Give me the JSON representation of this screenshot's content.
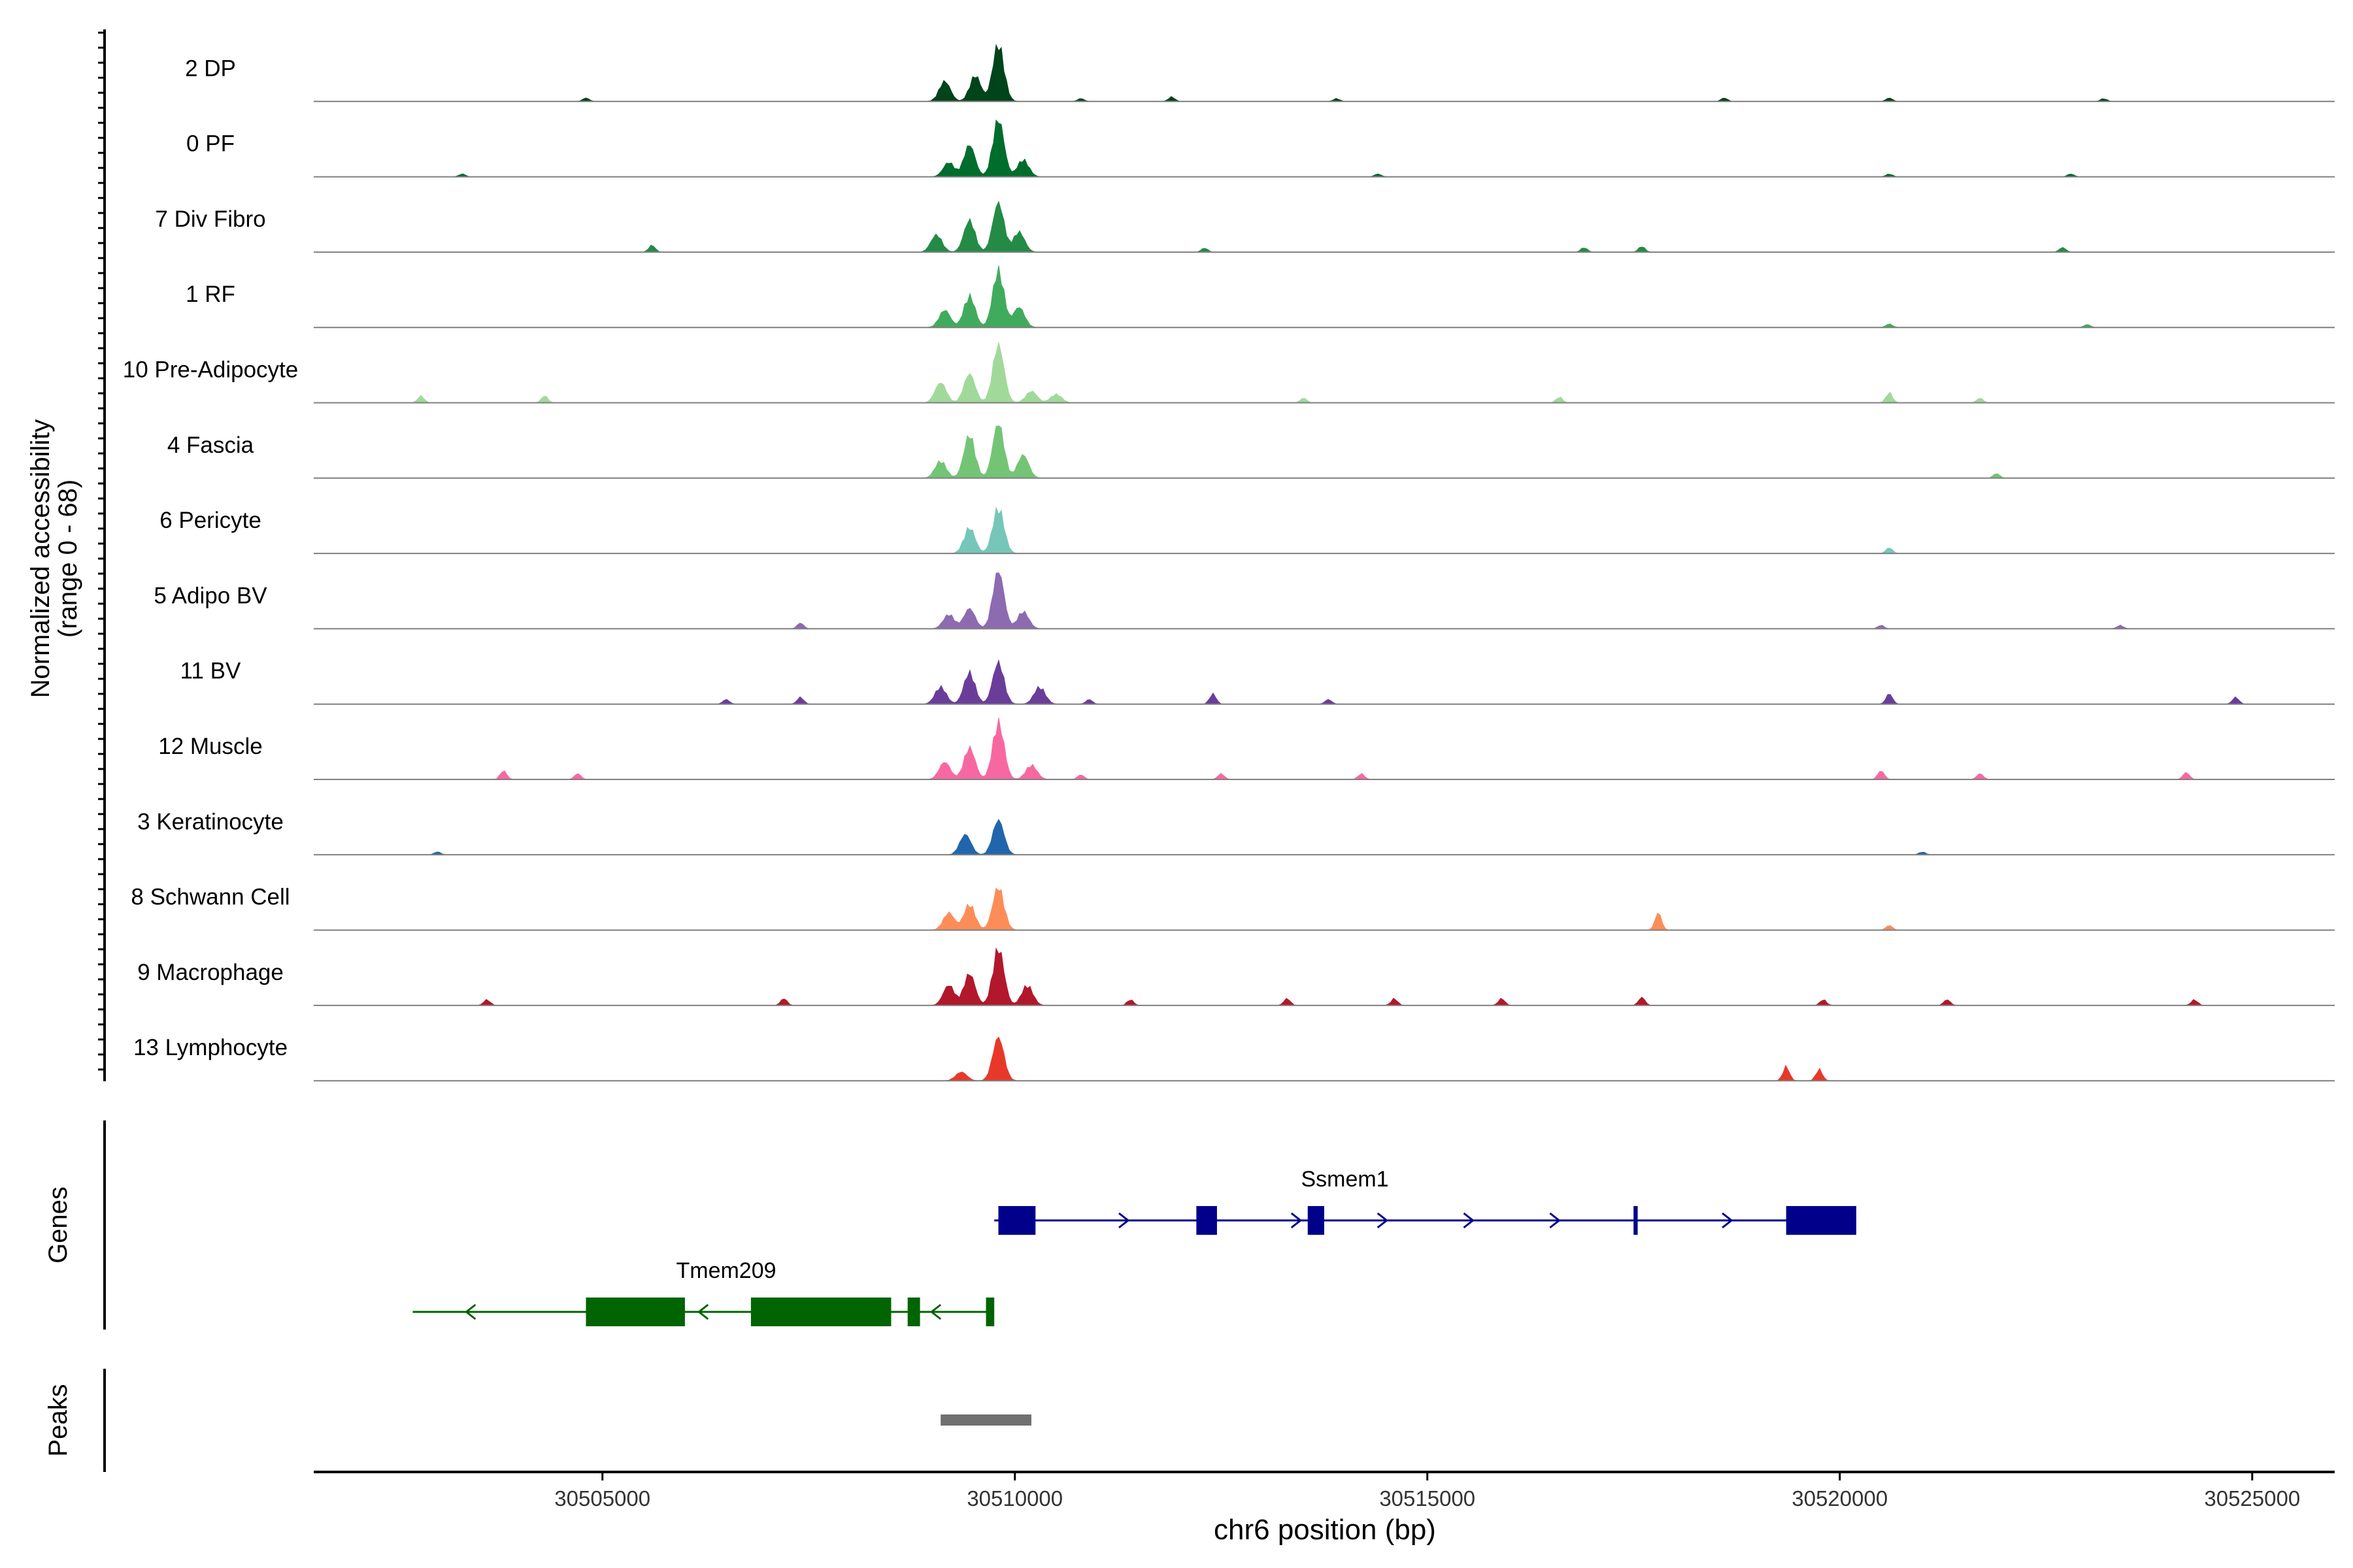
{
  "chart_data": {
    "type": "area",
    "title": "",
    "chromosome": "chr6",
    "xlabel": "chr6 position (bp)",
    "ylabel_line1": "Normalized accessibility",
    "ylabel_line2": "(range 0 - 68)",
    "y_range": [
      0,
      68
    ],
    "xlim": [
      30501500,
      30526000
    ],
    "x_ticks": [
      30505000,
      30510000,
      30515000,
      30520000,
      30525000
    ],
    "x_tick_labels": [
      "30505000",
      "30510000",
      "30515000",
      "30520000",
      "30525000"
    ],
    "tracks": [
      {
        "name": "2 DP",
        "color": "#00441b",
        "peaks": [
          [
            30509150,
            0.35
          ],
          [
            30509520,
            0.45
          ],
          [
            30509800,
            1.0
          ]
        ],
        "minor": [
          [
            30504800,
            0.06
          ],
          [
            30510800,
            0.05
          ],
          [
            30511900,
            0.08
          ],
          [
            30513900,
            0.05
          ],
          [
            30518600,
            0.06
          ],
          [
            30520600,
            0.06
          ],
          [
            30523200,
            0.05
          ]
        ]
      },
      {
        "name": "0 PF",
        "color": "#006d2c",
        "peaks": [
          [
            30509200,
            0.25
          ],
          [
            30509450,
            0.55
          ],
          [
            30509800,
            1.0
          ],
          [
            30510100,
            0.3
          ]
        ],
        "minor": [
          [
            30503300,
            0.05
          ],
          [
            30514400,
            0.05
          ],
          [
            30520600,
            0.05
          ],
          [
            30522800,
            0.05
          ]
        ]
      },
      {
        "name": "7 Div Fibro",
        "color": "#238b45",
        "peaks": [
          [
            30509050,
            0.3
          ],
          [
            30509450,
            0.55
          ],
          [
            30509800,
            0.85
          ],
          [
            30510050,
            0.35
          ]
        ],
        "minor": [
          [
            30505600,
            0.12
          ],
          [
            30512300,
            0.07
          ],
          [
            30516900,
            0.08
          ],
          [
            30517600,
            0.1
          ],
          [
            30522700,
            0.08
          ]
        ]
      },
      {
        "name": "1 RF",
        "color": "#41ab5d",
        "peaks": [
          [
            30509150,
            0.3
          ],
          [
            30509450,
            0.55
          ],
          [
            30509800,
            1.0
          ],
          [
            30510050,
            0.35
          ]
        ],
        "minor": [
          [
            30520600,
            0.06
          ],
          [
            30523000,
            0.05
          ]
        ]
      },
      {
        "name": "10 Pre-Adipocyte",
        "color": "#a1d99b",
        "peaks": [
          [
            30509100,
            0.35
          ],
          [
            30509450,
            0.5
          ],
          [
            30509800,
            1.0
          ],
          [
            30510200,
            0.2
          ],
          [
            30510500,
            0.15
          ]
        ],
        "minor": [
          [
            30502800,
            0.12
          ],
          [
            30504300,
            0.12
          ],
          [
            30513500,
            0.08
          ],
          [
            30516600,
            0.1
          ],
          [
            30520600,
            0.18
          ],
          [
            30521700,
            0.08
          ]
        ]
      },
      {
        "name": "4 Fascia",
        "color": "#74c476",
        "peaks": [
          [
            30509100,
            0.3
          ],
          [
            30509450,
            0.75
          ],
          [
            30509800,
            0.95
          ],
          [
            30510100,
            0.4
          ]
        ],
        "minor": [
          [
            30521900,
            0.08
          ]
        ]
      },
      {
        "name": "6 Pericyte",
        "color": "#76c7b9",
        "peaks": [
          [
            30509450,
            0.45
          ],
          [
            30509800,
            0.8
          ]
        ],
        "minor": [
          [
            30520600,
            0.1
          ]
        ]
      },
      {
        "name": "5 Adipo BV",
        "color": "#8c6bb1",
        "peaks": [
          [
            30509200,
            0.25
          ],
          [
            30509450,
            0.35
          ],
          [
            30509800,
            1.0
          ],
          [
            30510100,
            0.3
          ]
        ],
        "minor": [
          [
            30507400,
            0.1
          ],
          [
            30520500,
            0.06
          ],
          [
            30523400,
            0.06
          ]
        ]
      },
      {
        "name": "11 BV",
        "color": "#6a3d9a",
        "peaks": [
          [
            30509100,
            0.3
          ],
          [
            30509450,
            0.55
          ],
          [
            30509800,
            0.72
          ],
          [
            30510300,
            0.3
          ]
        ],
        "minor": [
          [
            30506500,
            0.08
          ],
          [
            30507400,
            0.12
          ],
          [
            30510900,
            0.08
          ],
          [
            30512400,
            0.18
          ],
          [
            30513800,
            0.08
          ],
          [
            30520600,
            0.18
          ],
          [
            30524800,
            0.12
          ]
        ]
      },
      {
        "name": "12 Muscle",
        "color": "#f768a1",
        "peaks": [
          [
            30509150,
            0.3
          ],
          [
            30509450,
            0.55
          ],
          [
            30509800,
            1.0
          ],
          [
            30510200,
            0.25
          ]
        ],
        "minor": [
          [
            30503800,
            0.15
          ],
          [
            30504700,
            0.1
          ],
          [
            30510800,
            0.08
          ],
          [
            30512500,
            0.1
          ],
          [
            30514200,
            0.1
          ],
          [
            30520500,
            0.15
          ],
          [
            30521700,
            0.1
          ],
          [
            30524200,
            0.12
          ]
        ]
      },
      {
        "name": "3 Keratinocyte",
        "color": "#2166ac",
        "peaks": [
          [
            30509400,
            0.35
          ],
          [
            30509800,
            0.6
          ]
        ],
        "minor": [
          [
            30503000,
            0.05
          ],
          [
            30521000,
            0.05
          ]
        ]
      },
      {
        "name": "8 Schwann Cell",
        "color": "#fc8d59",
        "peaks": [
          [
            30509200,
            0.3
          ],
          [
            30509450,
            0.45
          ],
          [
            30509800,
            0.75
          ]
        ],
        "minor": [
          [
            30517800,
            0.3
          ],
          [
            30520600,
            0.08
          ]
        ]
      },
      {
        "name": "9 Macrophage",
        "color": "#b2182b",
        "peaks": [
          [
            30509200,
            0.35
          ],
          [
            30509450,
            0.55
          ],
          [
            30509800,
            1.0
          ],
          [
            30510150,
            0.35
          ]
        ],
        "minor": [
          [
            30503600,
            0.1
          ],
          [
            30507200,
            0.12
          ],
          [
            30511400,
            0.1
          ],
          [
            30513300,
            0.12
          ],
          [
            30514600,
            0.12
          ],
          [
            30515900,
            0.12
          ],
          [
            30517600,
            0.14
          ],
          [
            30519800,
            0.1
          ],
          [
            30521300,
            0.1
          ],
          [
            30524300,
            0.1
          ]
        ]
      },
      {
        "name": "13 Lymphocyte",
        "color": "#e8382a",
        "peaks": [
          [
            30509350,
            0.15
          ],
          [
            30509800,
            0.75
          ]
        ],
        "minor": [
          [
            30519350,
            0.25
          ],
          [
            30519750,
            0.2
          ]
        ]
      }
    ],
    "genes_label": "Genes",
    "peaks_label": "Peaks",
    "genes": [
      {
        "name": "Ssmem1",
        "strand": "+",
        "color": "#00008b",
        "start": 30509750,
        "end": 30520200,
        "exons": [
          [
            30509800,
            30510250
          ],
          [
            30512200,
            30512450
          ],
          [
            30513550,
            30513750
          ],
          [
            30517500,
            30517550
          ],
          [
            30519350,
            30520200
          ]
        ]
      },
      {
        "name": "Tmem209",
        "strand": "-",
        "color": "#006400",
        "start": 30502700,
        "end": 30509750,
        "exons": [
          [
            30504800,
            30506000
          ],
          [
            30506800,
            30508500
          ],
          [
            30508700,
            30508850
          ],
          [
            30509650,
            30509750
          ]
        ]
      }
    ],
    "peak_regions": [
      {
        "start": 30509100,
        "end": 30510200,
        "color": "#707070"
      }
    ]
  }
}
